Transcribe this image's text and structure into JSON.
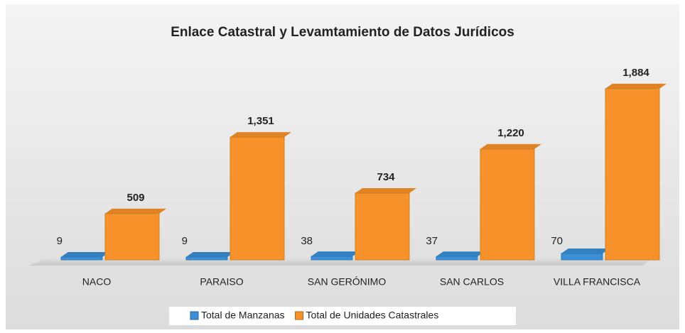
{
  "chart_data": {
    "type": "bar3d",
    "title": "Enlace Catastral y Levamtamiento de Datos Jurídicos",
    "categories": [
      "NACO",
      "PARAISO",
      "SAN GERÓNIMO",
      "SAN CARLOS",
      "VILLA FRANCISCA"
    ],
    "series": [
      {
        "name": "Total de Manzanas",
        "color": "#3a8fd6",
        "values": [
          9,
          9,
          38,
          37,
          70
        ]
      },
      {
        "name": "Total de Unidades Catastrales",
        "color": "#f7922a",
        "values": [
          509,
          1351,
          734,
          1220,
          1884
        ],
        "value_labels": [
          "509",
          "1,351",
          "734",
          "1,220",
          "1,884"
        ]
      }
    ]
  }
}
